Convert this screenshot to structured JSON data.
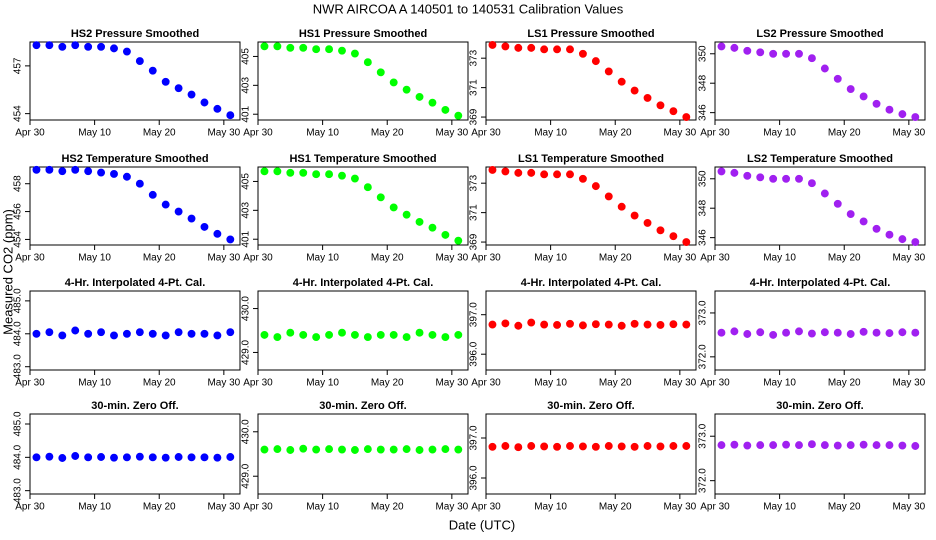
{
  "title": "NWR   AIRCOA A   140501 to 140531   Calibration Values",
  "y_label": "Measured CO2 (ppm)",
  "x_label": "Date (UTC)",
  "chart_data": [
    {
      "type": "scatter",
      "title": "HS2 Pressure Smoothed",
      "color": "#0000ff",
      "x": [
        1,
        3,
        5,
        7,
        9,
        11,
        13,
        15,
        17,
        19,
        21,
        23,
        25,
        27,
        29,
        31
      ],
      "values": [
        458.3,
        458.3,
        458.2,
        458.3,
        458.2,
        458.2,
        458.1,
        457.9,
        457.3,
        456.7,
        456.0,
        455.6,
        455.2,
        454.7,
        454.3,
        453.9
      ],
      "xlim": [
        0,
        32.5
      ],
      "xticks": [
        {
          "value": 0,
          "label": "Apr 30"
        },
        {
          "value": 10,
          "label": "May 10"
        },
        {
          "value": 20,
          "label": "May 20"
        },
        {
          "value": 30,
          "label": "May 30"
        }
      ],
      "ylim": [
        453.6,
        458.5
      ],
      "yticks": [
        454,
        457
      ]
    },
    {
      "type": "scatter",
      "title": "HS1 Pressure Smoothed",
      "color": "#00ff00",
      "x": [
        1,
        3,
        5,
        7,
        9,
        11,
        13,
        15,
        17,
        19,
        21,
        23,
        25,
        27,
        29,
        31
      ],
      "values": [
        405.7,
        405.7,
        405.6,
        405.6,
        405.5,
        405.5,
        405.4,
        405.2,
        404.6,
        403.9,
        403.2,
        402.7,
        402.2,
        401.8,
        401.3,
        400.9
      ],
      "xlim": [
        0,
        32.5
      ],
      "xticks": [
        {
          "value": 0,
          "label": "Apr 30"
        },
        {
          "value": 10,
          "label": "May 10"
        },
        {
          "value": 20,
          "label": "May 20"
        },
        {
          "value": 30,
          "label": "May 30"
        }
      ],
      "ylim": [
        400.6,
        406.0
      ],
      "yticks": [
        401,
        403,
        405
      ]
    },
    {
      "type": "scatter",
      "title": "LS1 Pressure Smoothed",
      "color": "#ff0000",
      "x": [
        1,
        3,
        5,
        7,
        9,
        11,
        13,
        15,
        17,
        19,
        21,
        23,
        25,
        27,
        29,
        31
      ],
      "values": [
        373.9,
        373.8,
        373.7,
        373.7,
        373.6,
        373.6,
        373.6,
        373.3,
        372.8,
        372.1,
        371.4,
        370.8,
        370.3,
        369.8,
        369.4,
        369.0
      ],
      "xlim": [
        0,
        32.5
      ],
      "xticks": [
        {
          "value": 0,
          "label": "Apr 30"
        },
        {
          "value": 10,
          "label": "May 10"
        },
        {
          "value": 20,
          "label": "May 20"
        },
        {
          "value": 30,
          "label": "May 30"
        }
      ],
      "ylim": [
        368.8,
        374.1
      ],
      "yticks": [
        369,
        371,
        373
      ]
    },
    {
      "type": "scatter",
      "title": "LS2 Pressure Smoothed",
      "color": "#a020f0",
      "x": [
        1,
        3,
        5,
        7,
        9,
        11,
        13,
        15,
        17,
        19,
        21,
        23,
        25,
        27,
        29,
        31
      ],
      "values": [
        350.5,
        350.4,
        350.2,
        350.1,
        350.0,
        350.0,
        350.0,
        349.7,
        349.0,
        348.3,
        347.6,
        347.1,
        346.6,
        346.2,
        345.9,
        345.7
      ],
      "xlim": [
        0,
        32.5
      ],
      "xticks": [
        {
          "value": 0,
          "label": "Apr 30"
        },
        {
          "value": 10,
          "label": "May 10"
        },
        {
          "value": 20,
          "label": "May 20"
        },
        {
          "value": 30,
          "label": "May 30"
        }
      ],
      "ylim": [
        345.5,
        350.8
      ],
      "yticks": [
        346,
        348,
        350
      ]
    },
    {
      "type": "scatter",
      "title": "HS2 Temperature Smoothed",
      "color": "#0000ff",
      "x": [
        1,
        3,
        5,
        7,
        9,
        11,
        13,
        15,
        17,
        19,
        21,
        23,
        25,
        27,
        29,
        31
      ],
      "values": [
        459.0,
        459.0,
        458.9,
        459.0,
        458.9,
        458.8,
        458.7,
        458.5,
        458.0,
        457.2,
        456.5,
        456.0,
        455.5,
        454.9,
        454.4,
        454.0
      ],
      "xlim": [
        0,
        32.5
      ],
      "xticks": [
        {
          "value": 0,
          "label": "Apr 30"
        },
        {
          "value": 10,
          "label": "May 10"
        },
        {
          "value": 20,
          "label": "May 20"
        },
        {
          "value": 30,
          "label": "May 30"
        }
      ],
      "ylim": [
        453.6,
        459.2
      ],
      "yticks": [
        454,
        456,
        458
      ]
    },
    {
      "type": "scatter",
      "title": "HS1 Temperature Smoothed",
      "color": "#00ff00",
      "x": [
        1,
        3,
        5,
        7,
        9,
        11,
        13,
        15,
        17,
        19,
        21,
        23,
        25,
        27,
        29,
        31
      ],
      "values": [
        405.7,
        405.7,
        405.6,
        405.6,
        405.5,
        405.5,
        405.4,
        405.2,
        404.6,
        403.9,
        403.2,
        402.7,
        402.2,
        401.8,
        401.3,
        400.9
      ],
      "xlim": [
        0,
        32.5
      ],
      "xticks": [
        {
          "value": 0,
          "label": "Apr 30"
        },
        {
          "value": 10,
          "label": "May 10"
        },
        {
          "value": 20,
          "label": "May 20"
        },
        {
          "value": 30,
          "label": "May 30"
        }
      ],
      "ylim": [
        400.6,
        406.0
      ],
      "yticks": [
        401,
        403,
        405
      ]
    },
    {
      "type": "scatter",
      "title": "LS1 Temperature Smoothed",
      "color": "#ff0000",
      "x": [
        1,
        3,
        5,
        7,
        9,
        11,
        13,
        15,
        17,
        19,
        21,
        23,
        25,
        27,
        29,
        31
      ],
      "values": [
        373.9,
        373.8,
        373.7,
        373.7,
        373.6,
        373.6,
        373.6,
        373.3,
        372.8,
        372.1,
        371.4,
        370.8,
        370.3,
        369.8,
        369.4,
        369.0
      ],
      "xlim": [
        0,
        32.5
      ],
      "xticks": [
        {
          "value": 0,
          "label": "Apr 30"
        },
        {
          "value": 10,
          "label": "May 10"
        },
        {
          "value": 20,
          "label": "May 20"
        },
        {
          "value": 30,
          "label": "May 30"
        }
      ],
      "ylim": [
        368.8,
        374.1
      ],
      "yticks": [
        369,
        371,
        373
      ]
    },
    {
      "type": "scatter",
      "title": "LS2 Temperature Smoothed",
      "color": "#a020f0",
      "x": [
        1,
        3,
        5,
        7,
        9,
        11,
        13,
        15,
        17,
        19,
        21,
        23,
        25,
        27,
        29,
        31
      ],
      "values": [
        350.5,
        350.4,
        350.2,
        350.1,
        350.0,
        350.0,
        350.0,
        349.7,
        349.0,
        348.3,
        347.6,
        347.1,
        346.6,
        346.2,
        345.9,
        345.7
      ],
      "xlim": [
        0,
        32.5
      ],
      "xticks": [
        {
          "value": 0,
          "label": "Apr 30"
        },
        {
          "value": 10,
          "label": "May 10"
        },
        {
          "value": 20,
          "label": "May 20"
        },
        {
          "value": 30,
          "label": "May 30"
        }
      ],
      "ylim": [
        345.5,
        350.8
      ],
      "yticks": [
        346,
        348,
        350
      ]
    },
    {
      "type": "scatter",
      "title": "4-Hr. Interpolated 4-Pt. Cal.",
      "color": "#0000ff",
      "x": [
        1,
        3,
        5,
        7,
        9,
        11,
        13,
        15,
        17,
        19,
        21,
        23,
        25,
        27,
        29,
        31
      ],
      "values": [
        484.0,
        484.05,
        483.95,
        484.1,
        484.0,
        484.05,
        483.95,
        484.0,
        484.05,
        484.0,
        483.95,
        484.05,
        484.0,
        484.0,
        483.95,
        484.05
      ],
      "xlim": [
        0,
        32.5
      ],
      "xticks": [
        {
          "value": 0,
          "label": "Apr 30"
        },
        {
          "value": 10,
          "label": "May 10"
        },
        {
          "value": 20,
          "label": "May 20"
        },
        {
          "value": 30,
          "label": "May 30"
        }
      ],
      "ylim": [
        482.9,
        485.3
      ],
      "yticks": [
        {
          "value": 483,
          "label": "483.0"
        },
        {
          "value": 484,
          "label": "484.0"
        },
        {
          "value": 485,
          "label": "485.0"
        }
      ]
    },
    {
      "type": "scatter",
      "title": "4-Hr. Interpolated 4-Pt. Cal.",
      "color": "#00ff00",
      "x": [
        1,
        3,
        5,
        7,
        9,
        11,
        13,
        15,
        17,
        19,
        21,
        23,
        25,
        27,
        29,
        31
      ],
      "values": [
        429.4,
        429.35,
        429.45,
        429.4,
        429.35,
        429.4,
        429.45,
        429.4,
        429.35,
        429.4,
        429.4,
        429.35,
        429.45,
        429.4,
        429.35,
        429.4
      ],
      "xlim": [
        0,
        32.5
      ],
      "xticks": [
        {
          "value": 0,
          "label": "Apr 30"
        },
        {
          "value": 10,
          "label": "May 10"
        },
        {
          "value": 20,
          "label": "May 20"
        },
        {
          "value": 30,
          "label": "May 30"
        }
      ],
      "ylim": [
        428.6,
        430.4
      ],
      "yticks": [
        {
          "value": 429,
          "label": "429.0"
        },
        {
          "value": 430,
          "label": "430.0"
        }
      ]
    },
    {
      "type": "scatter",
      "title": "4-Hr. Interpolated 4-Pt. Cal.",
      "color": "#ff0000",
      "x": [
        1,
        3,
        5,
        7,
        9,
        11,
        13,
        15,
        17,
        19,
        21,
        23,
        25,
        27,
        29,
        31
      ],
      "values": [
        396.75,
        396.78,
        396.72,
        396.8,
        396.75,
        396.74,
        396.77,
        396.73,
        396.76,
        396.75,
        396.72,
        396.77,
        396.75,
        396.74,
        396.76,
        396.75
      ],
      "xlim": [
        0,
        32.5
      ],
      "xticks": [
        {
          "value": 0,
          "label": "Apr 30"
        },
        {
          "value": 10,
          "label": "May 10"
        },
        {
          "value": 20,
          "label": "May 20"
        },
        {
          "value": 30,
          "label": "May 30"
        }
      ],
      "ylim": [
        395.6,
        397.6
      ],
      "yticks": [
        {
          "value": 396,
          "label": "396.0"
        },
        {
          "value": 397,
          "label": "397.0"
        }
      ]
    },
    {
      "type": "scatter",
      "title": "4-Hr. Interpolated 4-Pt. Cal.",
      "color": "#a020f0",
      "x": [
        1,
        3,
        5,
        7,
        9,
        11,
        13,
        15,
        17,
        19,
        21,
        23,
        25,
        27,
        29,
        31
      ],
      "values": [
        372.55,
        372.58,
        372.52,
        372.56,
        372.5,
        372.55,
        372.58,
        372.53,
        372.56,
        372.55,
        372.52,
        372.57,
        372.55,
        372.54,
        372.56,
        372.55
      ],
      "xlim": [
        0,
        32.5
      ],
      "xticks": [
        {
          "value": 0,
          "label": "Apr 30"
        },
        {
          "value": 10,
          "label": "May 10"
        },
        {
          "value": 20,
          "label": "May 20"
        },
        {
          "value": 30,
          "label": "May 30"
        }
      ],
      "ylim": [
        371.7,
        373.5
      ],
      "yticks": [
        {
          "value": 372,
          "label": "372.0"
        },
        {
          "value": 373,
          "label": "373.0"
        }
      ]
    },
    {
      "type": "scatter",
      "title": "30-min. Zero Off.",
      "color": "#0000ff",
      "x": [
        1,
        3,
        5,
        7,
        9,
        11,
        13,
        15,
        17,
        19,
        21,
        23,
        25,
        27,
        29,
        31
      ],
      "values": [
        484.0,
        484.02,
        483.98,
        484.04,
        484.0,
        484.01,
        483.99,
        484.0,
        484.02,
        484.0,
        483.99,
        484.01,
        484.0,
        484.0,
        483.99,
        484.01
      ],
      "xlim": [
        0,
        32.5
      ],
      "xticks": [
        {
          "value": 0,
          "label": "Apr 30"
        },
        {
          "value": 10,
          "label": "May 10"
        },
        {
          "value": 20,
          "label": "May 20"
        },
        {
          "value": 30,
          "label": "May 30"
        }
      ],
      "ylim": [
        482.9,
        485.3
      ],
      "yticks": [
        {
          "value": 483,
          "label": "483.0"
        },
        {
          "value": 484,
          "label": "484.0"
        },
        {
          "value": 485,
          "label": "485.0"
        }
      ]
    },
    {
      "type": "scatter",
      "title": "30-min. Zero Off.",
      "color": "#00ff00",
      "x": [
        1,
        3,
        5,
        7,
        9,
        11,
        13,
        15,
        17,
        19,
        21,
        23,
        25,
        27,
        29,
        31
      ],
      "values": [
        429.6,
        429.61,
        429.59,
        429.62,
        429.6,
        429.61,
        429.6,
        429.59,
        429.61,
        429.6,
        429.6,
        429.61,
        429.59,
        429.6,
        429.61,
        429.6
      ],
      "xlim": [
        0,
        32.5
      ],
      "xticks": [
        {
          "value": 0,
          "label": "Apr 30"
        },
        {
          "value": 10,
          "label": "May 10"
        },
        {
          "value": 20,
          "label": "May 20"
        },
        {
          "value": 30,
          "label": "May 30"
        }
      ],
      "ylim": [
        428.6,
        430.4
      ],
      "yticks": [
        {
          "value": 429,
          "label": "429.0"
        },
        {
          "value": 430,
          "label": "430.0"
        }
      ]
    },
    {
      "type": "scatter",
      "title": "30-min. Zero Off.",
      "color": "#ff0000",
      "x": [
        1,
        3,
        5,
        7,
        9,
        11,
        13,
        15,
        17,
        19,
        21,
        23,
        25,
        27,
        29,
        31
      ],
      "values": [
        396.78,
        396.8,
        396.77,
        396.8,
        396.79,
        396.78,
        396.8,
        396.79,
        396.78,
        396.8,
        396.79,
        396.78,
        396.8,
        396.79,
        396.8,
        396.8
      ],
      "xlim": [
        0,
        32.5
      ],
      "xticks": [
        {
          "value": 0,
          "label": "Apr 30"
        },
        {
          "value": 10,
          "label": "May 10"
        },
        {
          "value": 20,
          "label": "May 20"
        },
        {
          "value": 30,
          "label": "May 30"
        }
      ],
      "ylim": [
        395.6,
        397.6
      ],
      "yticks": [
        {
          "value": 396,
          "label": "396.0"
        },
        {
          "value": 397,
          "label": "397.0"
        }
      ]
    },
    {
      "type": "scatter",
      "title": "30-min. Zero Off.",
      "color": "#a020f0",
      "x": [
        1,
        3,
        5,
        7,
        9,
        11,
        13,
        15,
        17,
        19,
        21,
        23,
        25,
        27,
        29,
        31
      ],
      "values": [
        372.8,
        372.81,
        372.79,
        372.8,
        372.8,
        372.81,
        372.8,
        372.82,
        372.8,
        372.79,
        372.8,
        372.81,
        372.8,
        372.8,
        372.79,
        372.78
      ],
      "xlim": [
        0,
        32.5
      ],
      "xticks": [
        {
          "value": 0,
          "label": "Apr 30"
        },
        {
          "value": 10,
          "label": "May 10"
        },
        {
          "value": 20,
          "label": "May 20"
        },
        {
          "value": 30,
          "label": "May 30"
        }
      ],
      "ylim": [
        371.7,
        373.5
      ],
      "yticks": [
        {
          "value": 372,
          "label": "372.0"
        },
        {
          "value": 373,
          "label": "373.0"
        }
      ]
    }
  ]
}
